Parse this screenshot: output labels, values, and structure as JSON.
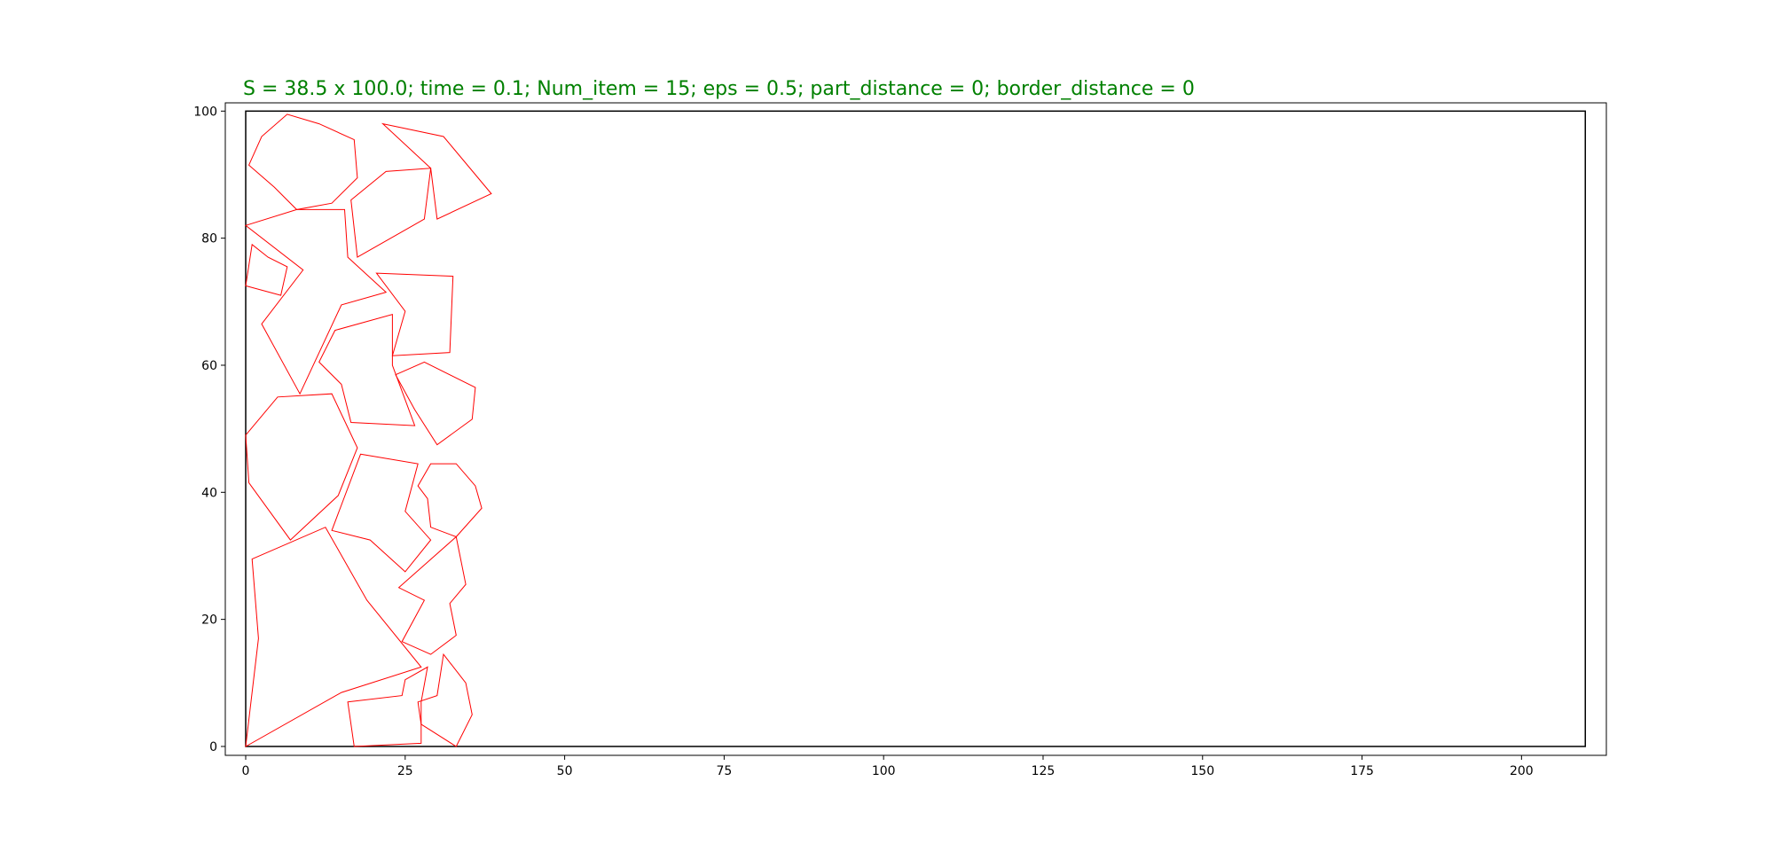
{
  "chart_data": {
    "type": "polygon-packing",
    "title": "S = 38.5 x 100.0;  time = 0.1;  Num_item = 15;  eps = 0.5;  part_distance = 0;  border_distance = 0",
    "title_color": "#008000",
    "xlabel": "",
    "ylabel": "",
    "xlim": [
      -3.2,
      213.3
    ],
    "ylim": [
      -1.4,
      101.3
    ],
    "xticks": [
      0,
      25,
      50,
      75,
      100,
      125,
      150,
      175,
      200
    ],
    "yticks": [
      0,
      20,
      40,
      60,
      80,
      100
    ],
    "grid": false,
    "container": {
      "x": [
        0,
        210
      ],
      "y": [
        0,
        100
      ],
      "stroke": "#000000"
    },
    "polygon_color": "#ff0000",
    "polygons": [
      [
        [
          0.5,
          91.5
        ],
        [
          2.5,
          96
        ],
        [
          6.5,
          99.5
        ],
        [
          11.5,
          98
        ],
        [
          17,
          95.5
        ],
        [
          17.5,
          89.5
        ],
        [
          13.5,
          85.5
        ],
        [
          8,
          84.5
        ],
        [
          4.5,
          88
        ]
      ],
      [
        [
          21.5,
          98
        ],
        [
          31,
          96
        ],
        [
          38.5,
          87
        ],
        [
          30,
          83
        ],
        [
          29,
          91
        ]
      ],
      [
        [
          16.5,
          86
        ],
        [
          22,
          90.5
        ],
        [
          29,
          91
        ],
        [
          28,
          83
        ],
        [
          17.5,
          77
        ]
      ],
      [
        [
          0,
          82
        ],
        [
          8,
          84.5
        ],
        [
          15.5,
          84.5
        ],
        [
          16,
          77
        ],
        [
          22,
          71.5
        ],
        [
          15,
          69.5
        ],
        [
          8.5,
          55.5
        ],
        [
          2.5,
          66.5
        ],
        [
          9,
          75
        ]
      ],
      [
        [
          0,
          72.5
        ],
        [
          1,
          79
        ],
        [
          3.5,
          77
        ],
        [
          6.5,
          75.5
        ],
        [
          5.5,
          71
        ]
      ],
      [
        [
          20.5,
          74.5
        ],
        [
          32.5,
          74
        ],
        [
          32,
          62
        ],
        [
          23,
          61.5
        ],
        [
          25,
          68.5
        ]
      ],
      [
        [
          11.5,
          60.5
        ],
        [
          14,
          65.5
        ],
        [
          23,
          68
        ],
        [
          23,
          60
        ],
        [
          26.5,
          50.5
        ],
        [
          16.5,
          51
        ],
        [
          15,
          57
        ]
      ],
      [
        [
          23.5,
          58.5
        ],
        [
          28,
          60.5
        ],
        [
          36,
          56.5
        ],
        [
          35.5,
          51.5
        ],
        [
          30,
          47.5
        ],
        [
          26.5,
          53
        ]
      ],
      [
        [
          0,
          49
        ],
        [
          5,
          55
        ],
        [
          13.5,
          55.5
        ],
        [
          17.5,
          47
        ],
        [
          14.5,
          39.5
        ],
        [
          7,
          32.5
        ],
        [
          0.5,
          41.5
        ]
      ],
      [
        [
          18,
          46
        ],
        [
          27,
          44.5
        ],
        [
          25,
          37
        ],
        [
          29,
          32.5
        ],
        [
          25,
          27.5
        ],
        [
          19.5,
          32.5
        ],
        [
          13.5,
          34
        ]
      ],
      [
        [
          29,
          44.5
        ],
        [
          33,
          44.5
        ],
        [
          36,
          41
        ],
        [
          37,
          37.5
        ],
        [
          33,
          33
        ],
        [
          29,
          34.5
        ],
        [
          28.5,
          39
        ],
        [
          27,
          41
        ]
      ],
      [
        [
          1,
          29.5
        ],
        [
          12.5,
          34.5
        ],
        [
          19,
          23
        ],
        [
          27.5,
          12.5
        ],
        [
          15,
          8.5
        ],
        [
          0,
          0
        ],
        [
          2,
          17
        ]
      ],
      [
        [
          33,
          33
        ],
        [
          34.5,
          25.5
        ],
        [
          32,
          22.5
        ],
        [
          33,
          17.5
        ],
        [
          29,
          14.5
        ],
        [
          24.5,
          16.5
        ],
        [
          28,
          23
        ],
        [
          24,
          25
        ]
      ],
      [
        [
          31,
          14.5
        ],
        [
          34.5,
          10
        ],
        [
          35.5,
          5
        ],
        [
          33,
          0
        ],
        [
          27.5,
          3.5
        ],
        [
          27,
          7
        ],
        [
          30,
          8
        ]
      ],
      [
        [
          16,
          7
        ],
        [
          24.5,
          8
        ],
        [
          25,
          10.5
        ],
        [
          28.5,
          12.5
        ],
        [
          27.5,
          7
        ],
        [
          27.5,
          0.5
        ],
        [
          17,
          0
        ]
      ]
    ]
  }
}
